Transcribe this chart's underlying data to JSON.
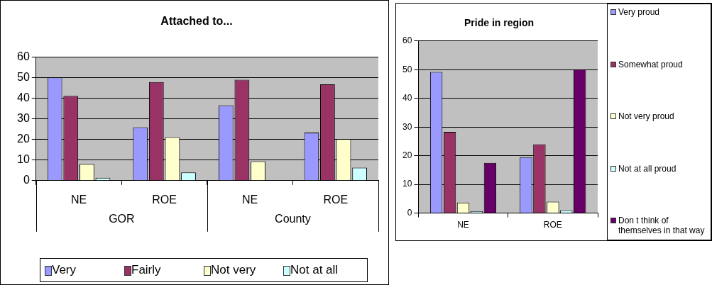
{
  "chart_data": [
    {
      "type": "bar",
      "title": "Attached to...",
      "categories": [
        "NE",
        "ROE",
        "NE",
        "ROE"
      ],
      "annotations": [
        "GOR",
        "County"
      ],
      "ylim": [
        0,
        60
      ],
      "yticks": [
        0,
        10,
        20,
        30,
        40,
        50,
        60
      ],
      "grid": "y",
      "legend": "bottom",
      "series": [
        {
          "name": "Very",
          "color": "#9999ff",
          "values": [
            50,
            25.9,
            36.5,
            23.3
          ]
        },
        {
          "name": "Fairly",
          "color": "#993366",
          "values": [
            41.1,
            47.8,
            48.9,
            46.7
          ]
        },
        {
          "name": "Not very",
          "color": "#ffffcc",
          "values": [
            8.1,
            21.1,
            9.4,
            20.2
          ]
        },
        {
          "name": "Not at all",
          "color": "#ccffff",
          "values": [
            1.4,
            4,
            null,
            6.3
          ]
        }
      ]
    },
    {
      "type": "bar",
      "title": "Pride in region",
      "categories": [
        "NE",
        "ROE"
      ],
      "ylim": [
        0,
        60
      ],
      "yticks": [
        0,
        10,
        20,
        30,
        40,
        50,
        60
      ],
      "grid": "y",
      "legend": "right",
      "series": [
        {
          "name": "Very proud",
          "color": "#9999ff",
          "values": [
            49.2,
            19.5
          ]
        },
        {
          "name": "Somewhat proud",
          "color": "#993366",
          "values": [
            28.3,
            24
          ]
        },
        {
          "name": "Not very proud",
          "color": "#ffffcc",
          "values": [
            3.7,
            4
          ]
        },
        {
          "name": "Not at all proud",
          "color": "#ccffff",
          "values": [
            0.7,
            1
          ]
        },
        {
          "name": "Don t think of themselves in that way",
          "color": "#660066",
          "values": [
            17.5,
            50.1
          ]
        }
      ]
    }
  ]
}
